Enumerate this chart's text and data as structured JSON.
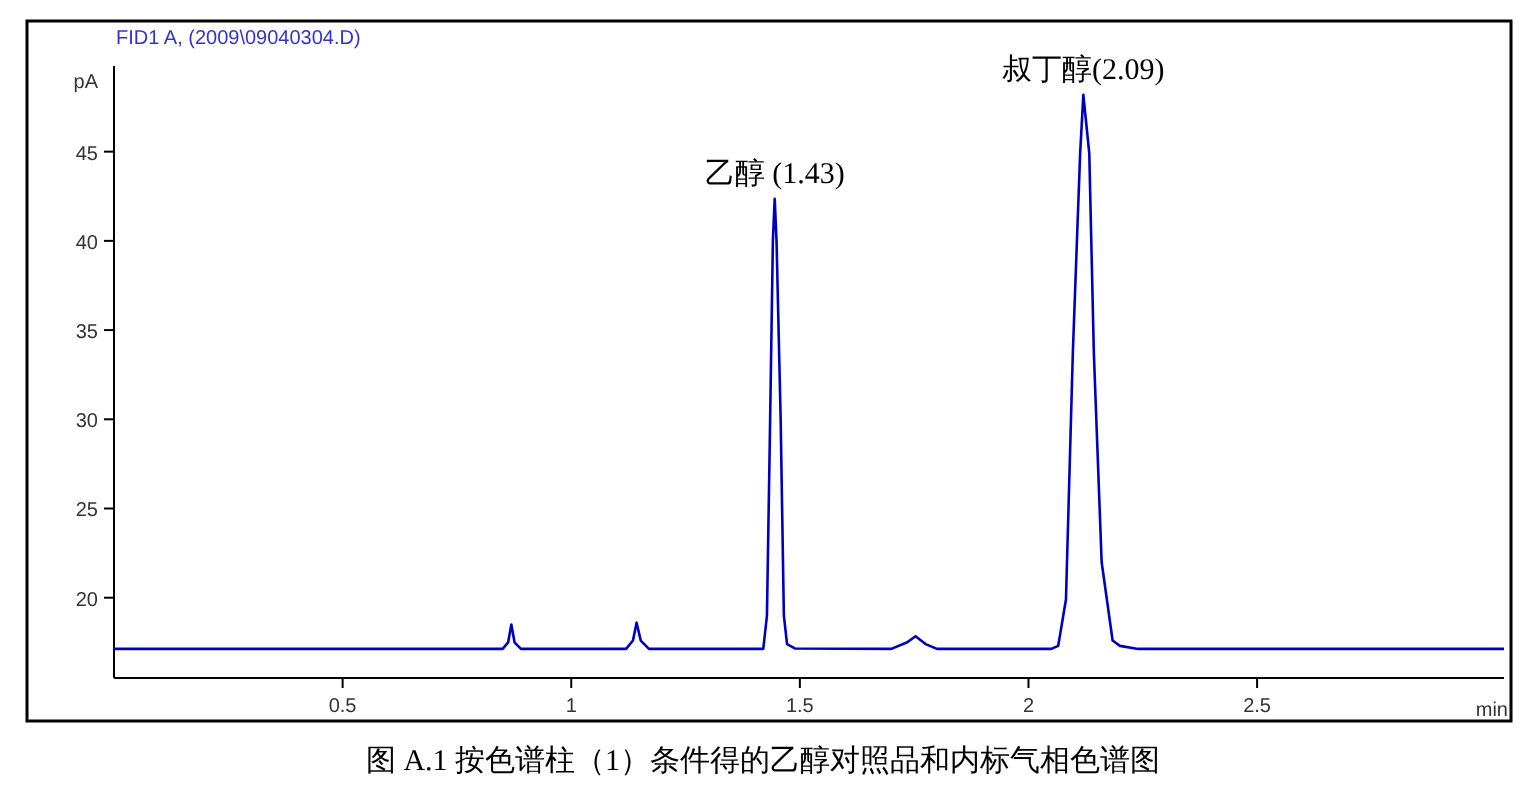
{
  "chart_data": {
    "type": "line",
    "title": "FID1 A, (2009\\09040304.D)",
    "xlabel": "min",
    "ylabel": "pA",
    "annotations": [
      {
        "text": "乙醇 (1.43)",
        "x": 1.445,
        "y": 42.35
      },
      {
        "text": "叔丁醇(2.09)",
        "x": 2.12,
        "y": 48.18
      },
      "图 A.1 按色谱柱（1）条件得的乙醇对照品和内标气相色谱图"
    ],
    "x": [
      0,
      0.85,
      0.862,
      0.869,
      0.876,
      0.89,
      1.12,
      1.135,
      1.143,
      1.152,
      1.17,
      1.42,
      1.428,
      1.435,
      1.441,
      1.445,
      1.449,
      1.458,
      1.465,
      1.472,
      1.49,
      1.7,
      1.735,
      1.753,
      1.775,
      1.8,
      2.05,
      2.065,
      2.082,
      2.097,
      2.113,
      2.12,
      2.133,
      2.143,
      2.16,
      2.184,
      2.2,
      2.24,
      3.04
    ],
    "series": [
      {
        "color": "#0000c0",
        "values": [
          17.13,
          17.13,
          17.5,
          18.5,
          17.5,
          17.13,
          17.13,
          17.6,
          18.6,
          17.6,
          17.13,
          17.13,
          19,
          30,
          40,
          42.35,
          40,
          30,
          19,
          17.4,
          17.15,
          17.13,
          17.5,
          17.84,
          17.4,
          17.13,
          17.13,
          17.3,
          19.9,
          33.7,
          44.9,
          48.18,
          44.9,
          33.7,
          22,
          17.6,
          17.3,
          17.13,
          17.13
        ]
      }
    ],
    "xlim": [
      0,
      3.04
    ],
    "ylim": [
      15.5,
      49.8
    ],
    "xticks": [
      0.5,
      1,
      1.5,
      2,
      2.5
    ],
    "yticks": [
      20,
      25,
      30,
      35,
      40,
      45
    ]
  }
}
